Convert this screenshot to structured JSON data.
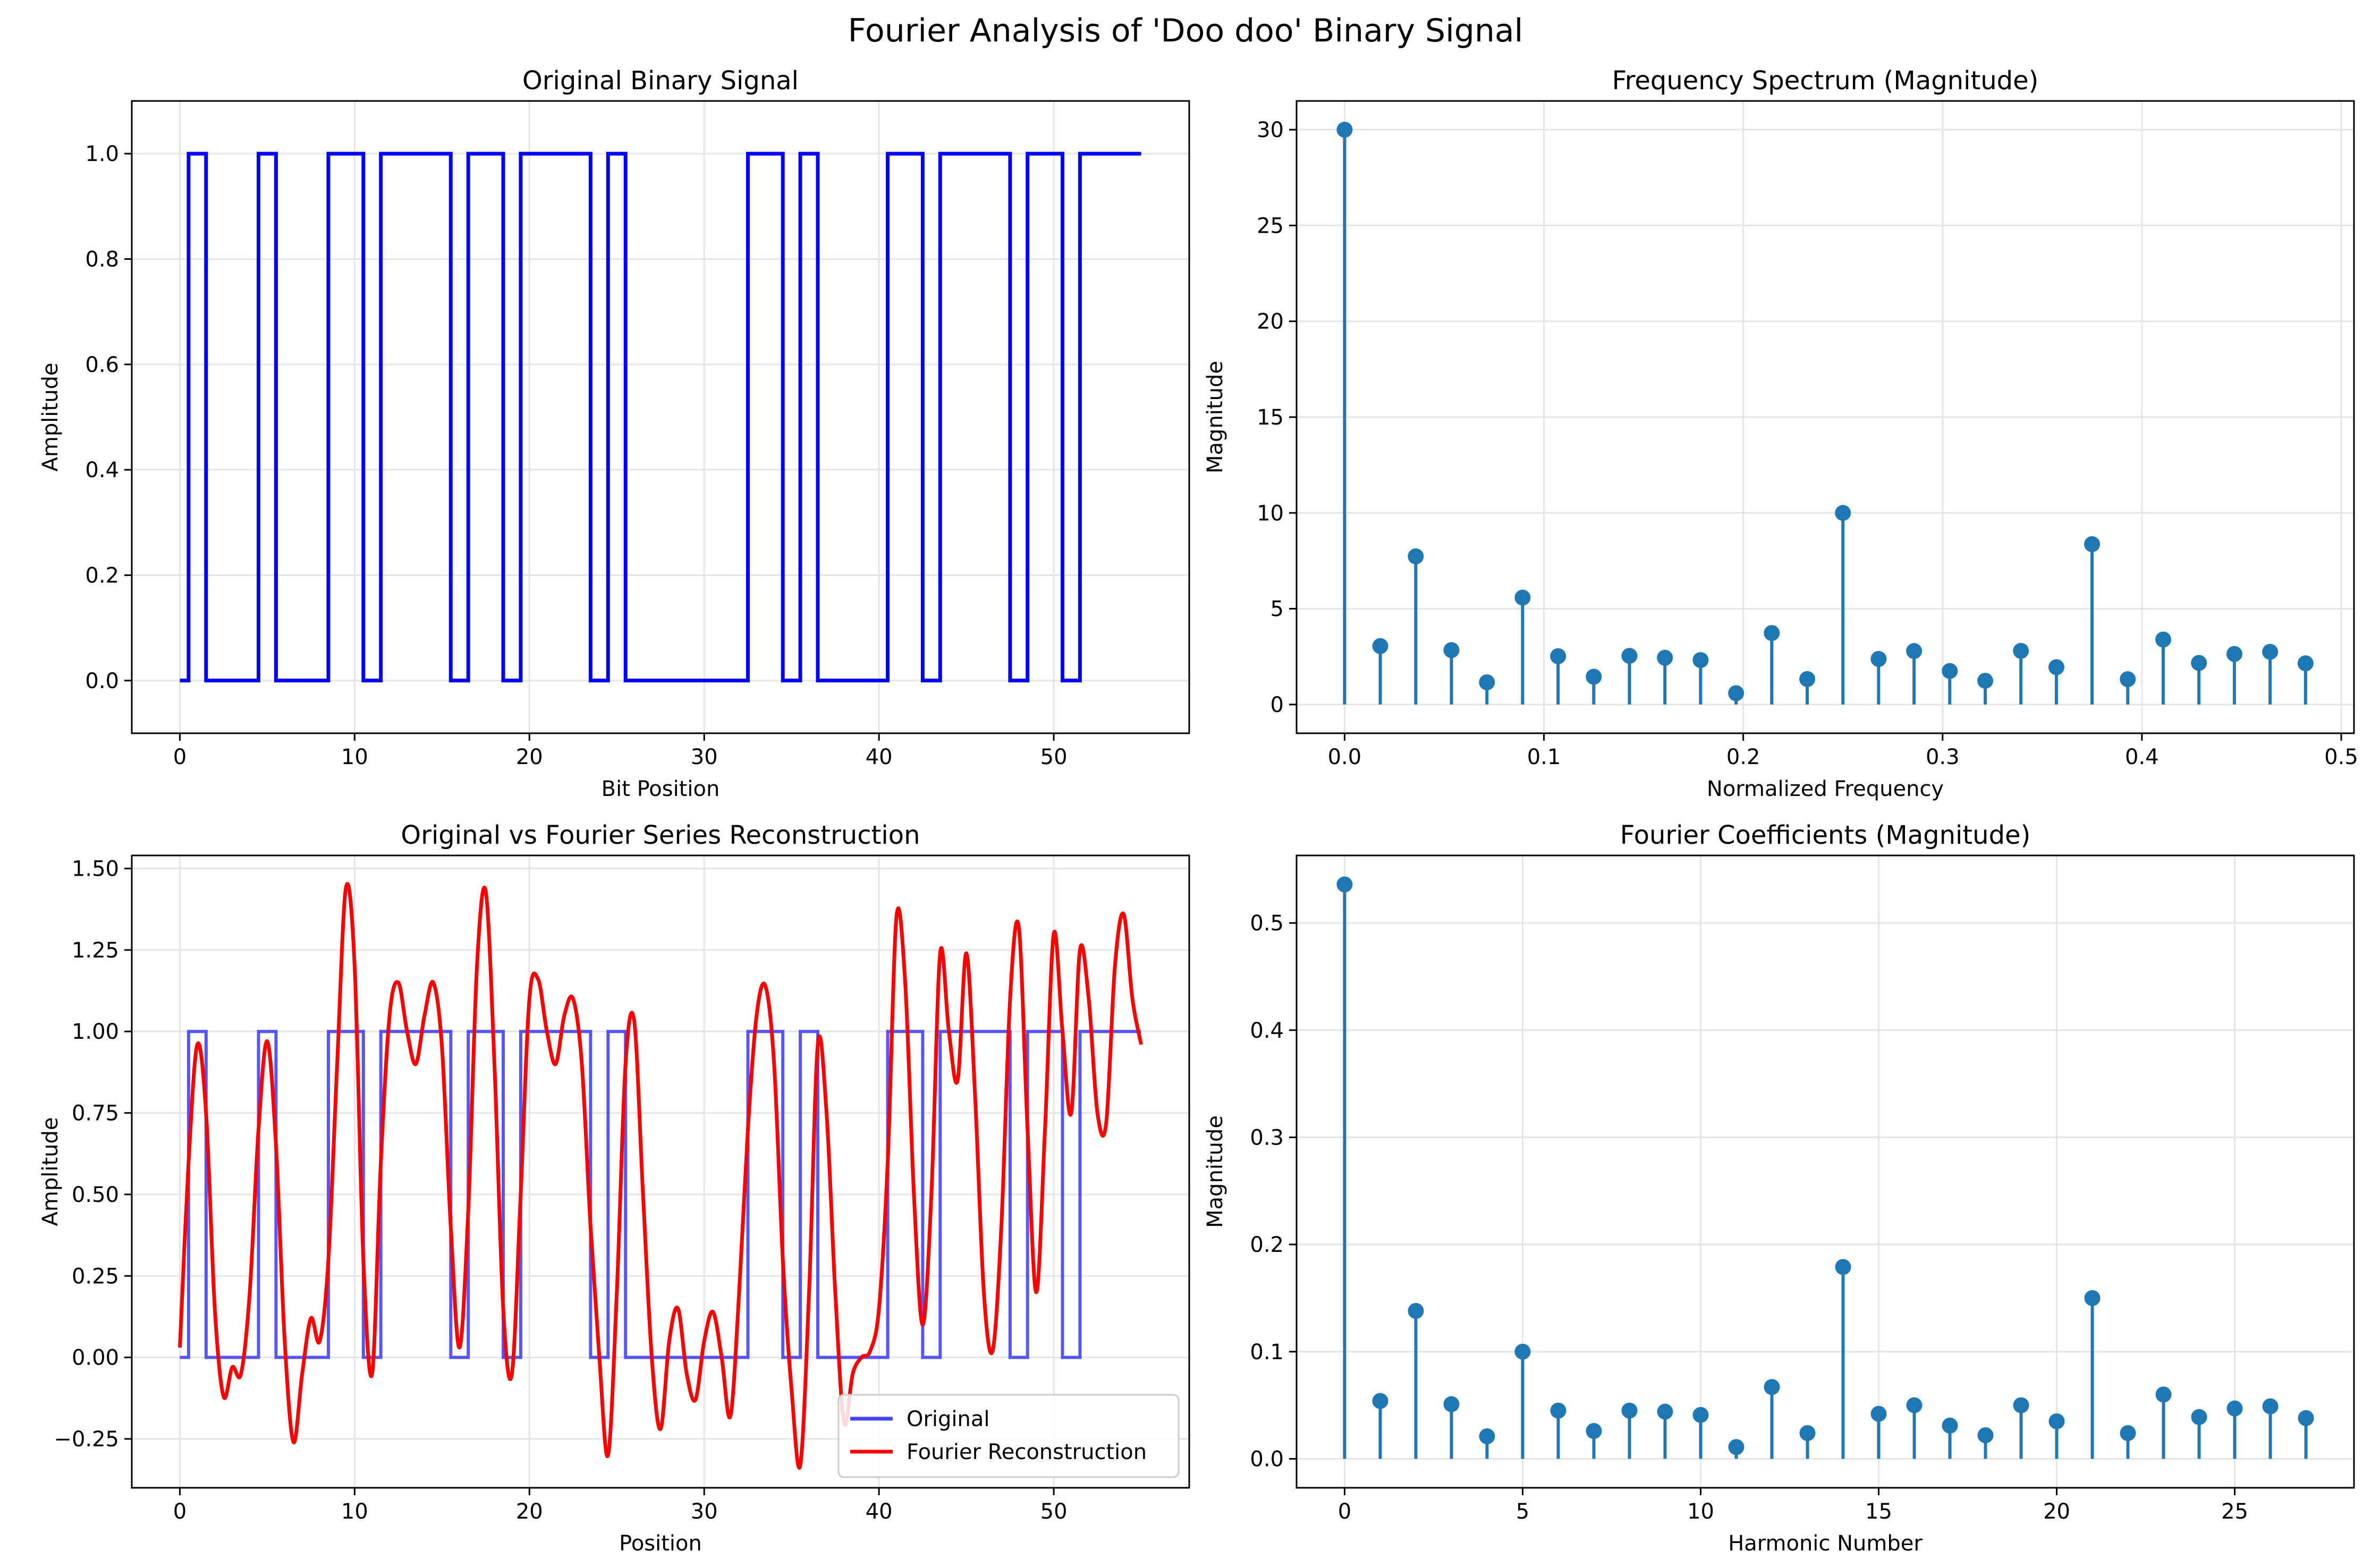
{
  "suptitle": "Fourier Analysis of 'Doo doo' Binary Signal",
  "colors": {
    "signal": "#0000ff",
    "reconstruction": "#ff0000",
    "stem": "#1f77b4",
    "grid": "#e5e5e5"
  },
  "chart_data": [
    {
      "type": "line",
      "title": "Original Binary Signal",
      "xlabel": "Bit Position",
      "ylabel": "Amplitude",
      "xlim": [
        -2.75,
        57.75
      ],
      "ylim": [
        -0.1,
        1.1
      ],
      "xticks": [
        0,
        10,
        20,
        30,
        40,
        50
      ],
      "yticks": [
        "0.0",
        "0.2",
        "0.4",
        "0.6",
        "0.8",
        "1.0"
      ],
      "grid": true,
      "step": "mid",
      "bits": [
        0,
        1,
        0,
        0,
        0,
        1,
        0,
        0,
        0,
        1,
        1,
        0,
        1,
        1,
        1,
        1,
        0,
        1,
        1,
        0,
        1,
        1,
        1,
        1,
        0,
        1,
        0,
        0,
        0,
        0,
        0,
        0,
        0,
        1,
        1,
        0,
        1,
        0,
        0,
        0,
        0,
        1,
        1,
        0,
        1,
        1,
        1,
        1,
        0,
        1,
        1,
        0,
        1,
        1,
        1,
        1
      ]
    },
    {
      "type": "stem",
      "title": "Frequency Spectrum (Magnitude)",
      "xlabel": "Normalized Frequency",
      "ylabel": "Magnitude",
      "xlim": [
        -0.0241,
        0.5064
      ],
      "ylim": [
        -1.5,
        31.5
      ],
      "xticks": [
        "0.0",
        "0.1",
        "0.2",
        "0.3",
        "0.4",
        "0.5"
      ],
      "yticks": [
        0,
        5,
        10,
        15,
        20,
        25,
        30
      ],
      "grid": true,
      "x": [
        0.0,
        0.0179,
        0.0357,
        0.0536,
        0.0714,
        0.0893,
        0.1071,
        0.125,
        0.1429,
        0.1607,
        0.1786,
        0.1964,
        0.2143,
        0.2321,
        0.25,
        0.2679,
        0.2857,
        0.3036,
        0.3214,
        0.3393,
        0.3571,
        0.375,
        0.3929,
        0.4107,
        0.4286,
        0.4464,
        0.4643,
        0.4821
      ],
      "y": [
        30.0,
        3.05,
        7.73,
        2.84,
        1.16,
        5.58,
        2.52,
        1.45,
        2.54,
        2.44,
        2.32,
        0.59,
        3.73,
        1.33,
        10.0,
        2.38,
        2.79,
        1.75,
        1.24,
        2.8,
        1.95,
        8.37,
        1.32,
        3.39,
        2.17,
        2.64,
        2.75,
        2.15
      ]
    },
    {
      "type": "line",
      "title": "Original vs Fourier Series Reconstruction",
      "xlabel": "Position",
      "ylabel": "Amplitude",
      "xlim": [
        -2.75,
        57.75
      ],
      "ylim": [
        -0.4,
        1.54
      ],
      "xticks": [
        0,
        10,
        20,
        30,
        40,
        50
      ],
      "yticks": [
        "−0.25",
        "0.00",
        "0.25",
        "0.50",
        "0.75",
        "1.00",
        "1.25",
        "1.50"
      ],
      "grid": true,
      "series": [
        {
          "name": "Original",
          "source": "bits",
          "color": "#4444ff"
        },
        {
          "name": "Fourier Reconstruction",
          "color": "#ff0000",
          "points": [
            [
              0,
              0.03
            ],
            [
              0.5,
              0.6
            ],
            [
              1,
              0.96
            ],
            [
              1.5,
              0.75
            ],
            [
              2,
              0.15
            ],
            [
              2.5,
              -0.12
            ],
            [
              3,
              -0.03
            ],
            [
              3.5,
              -0.05
            ],
            [
              4,
              0.2
            ],
            [
              4.5,
              0.7
            ],
            [
              5,
              0.97
            ],
            [
              5.5,
              0.65
            ],
            [
              6,
              0.05
            ],
            [
              6.5,
              -0.26
            ],
            [
              7,
              -0.05
            ],
            [
              7.5,
              0.12
            ],
            [
              8,
              0.05
            ],
            [
              8.5,
              0.3
            ],
            [
              9,
              0.9
            ],
            [
              9.5,
              1.44
            ],
            [
              10,
              1.2
            ],
            [
              10.5,
              0.3
            ],
            [
              11,
              -0.05
            ],
            [
              11.5,
              0.6
            ],
            [
              12,
              1.05
            ],
            [
              12.5,
              1.15
            ],
            [
              13,
              1.0
            ],
            [
              13.5,
              0.9
            ],
            [
              14,
              1.05
            ],
            [
              14.5,
              1.15
            ],
            [
              15,
              0.95
            ],
            [
              15.5,
              0.4
            ],
            [
              16,
              0.03
            ],
            [
              16.5,
              0.45
            ],
            [
              17,
              1.2
            ],
            [
              17.5,
              1.43
            ],
            [
              18,
              0.9
            ],
            [
              18.5,
              0.15
            ],
            [
              19,
              -0.05
            ],
            [
              19.5,
              0.5
            ],
            [
              20,
              1.1
            ],
            [
              20.5,
              1.16
            ],
            [
              21,
              1.0
            ],
            [
              21.5,
              0.9
            ],
            [
              22,
              1.05
            ],
            [
              22.5,
              1.1
            ],
            [
              23,
              0.9
            ],
            [
              23.5,
              0.4
            ],
            [
              24,
              0.0
            ],
            [
              24.5,
              -0.3
            ],
            [
              25,
              0.2
            ],
            [
              25.5,
              0.9
            ],
            [
              26,
              1.03
            ],
            [
              26.5,
              0.5
            ],
            [
              27,
              0.0
            ],
            [
              27.5,
              -0.22
            ],
            [
              28,
              0.05
            ],
            [
              28.5,
              0.15
            ],
            [
              29,
              -0.05
            ],
            [
              29.5,
              -0.13
            ],
            [
              30,
              0.05
            ],
            [
              30.5,
              0.14
            ],
            [
              31,
              0.0
            ],
            [
              31.5,
              -0.18
            ],
            [
              32,
              0.2
            ],
            [
              32.5,
              0.7
            ],
            [
              33,
              1.05
            ],
            [
              33.5,
              1.14
            ],
            [
              34,
              0.9
            ],
            [
              34.5,
              0.3
            ],
            [
              35,
              -0.1
            ],
            [
              35.5,
              -0.33
            ],
            [
              36,
              0.2
            ],
            [
              36.5,
              0.96
            ],
            [
              37,
              0.75
            ],
            [
              37.5,
              0.2
            ],
            [
              38,
              -0.2
            ],
            [
              38.5,
              -0.05
            ],
            [
              39,
              0.0
            ],
            [
              39.5,
              0.02
            ],
            [
              40,
              0.15
            ],
            [
              40.5,
              0.6
            ],
            [
              41,
              1.35
            ],
            [
              41.5,
              1.15
            ],
            [
              42,
              0.5
            ],
            [
              42.5,
              0.1
            ],
            [
              43,
              0.5
            ],
            [
              43.5,
              1.24
            ],
            [
              44,
              1.0
            ],
            [
              44.5,
              0.85
            ],
            [
              45,
              1.24
            ],
            [
              45.5,
              0.8
            ],
            [
              46,
              0.2
            ],
            [
              46.5,
              0.02
            ],
            [
              47,
              0.4
            ],
            [
              47.5,
              1.1
            ],
            [
              48,
              1.32
            ],
            [
              48.5,
              0.7
            ],
            [
              49,
              0.2
            ],
            [
              49.5,
              0.7
            ],
            [
              50,
              1.3
            ],
            [
              50.5,
              1.0
            ],
            [
              51,
              0.75
            ],
            [
              51.5,
              1.25
            ],
            [
              52,
              1.1
            ],
            [
              52.5,
              0.75
            ],
            [
              53,
              0.72
            ],
            [
              53.5,
              1.2
            ],
            [
              54,
              1.36
            ],
            [
              54.5,
              1.1
            ],
            [
              55,
              0.96
            ]
          ]
        }
      ],
      "legend": "lower right"
    },
    {
      "type": "stem",
      "title": "Fourier Coefficients (Magnitude)",
      "xlabel": "Harmonic Number",
      "ylabel": "Magnitude",
      "xlim": [
        -1.35,
        28.35
      ],
      "ylim": [
        -0.027,
        0.563
      ],
      "xticks": [
        0,
        5,
        10,
        15,
        20,
        25
      ],
      "yticks": [
        "0.0",
        "0.1",
        "0.2",
        "0.3",
        "0.4",
        "0.5"
      ],
      "grid": true,
      "x": [
        0,
        1,
        2,
        3,
        4,
        5,
        6,
        7,
        8,
        9,
        10,
        11,
        12,
        13,
        14,
        15,
        16,
        17,
        18,
        19,
        20,
        21,
        22,
        23,
        24,
        25,
        26,
        27
      ],
      "y": [
        0.536,
        0.054,
        0.138,
        0.051,
        0.021,
        0.1,
        0.045,
        0.026,
        0.045,
        0.044,
        0.041,
        0.011,
        0.067,
        0.024,
        0.179,
        0.042,
        0.05,
        0.031,
        0.022,
        0.05,
        0.035,
        0.15,
        0.024,
        0.06,
        0.039,
        0.047,
        0.049,
        0.038
      ]
    }
  ]
}
